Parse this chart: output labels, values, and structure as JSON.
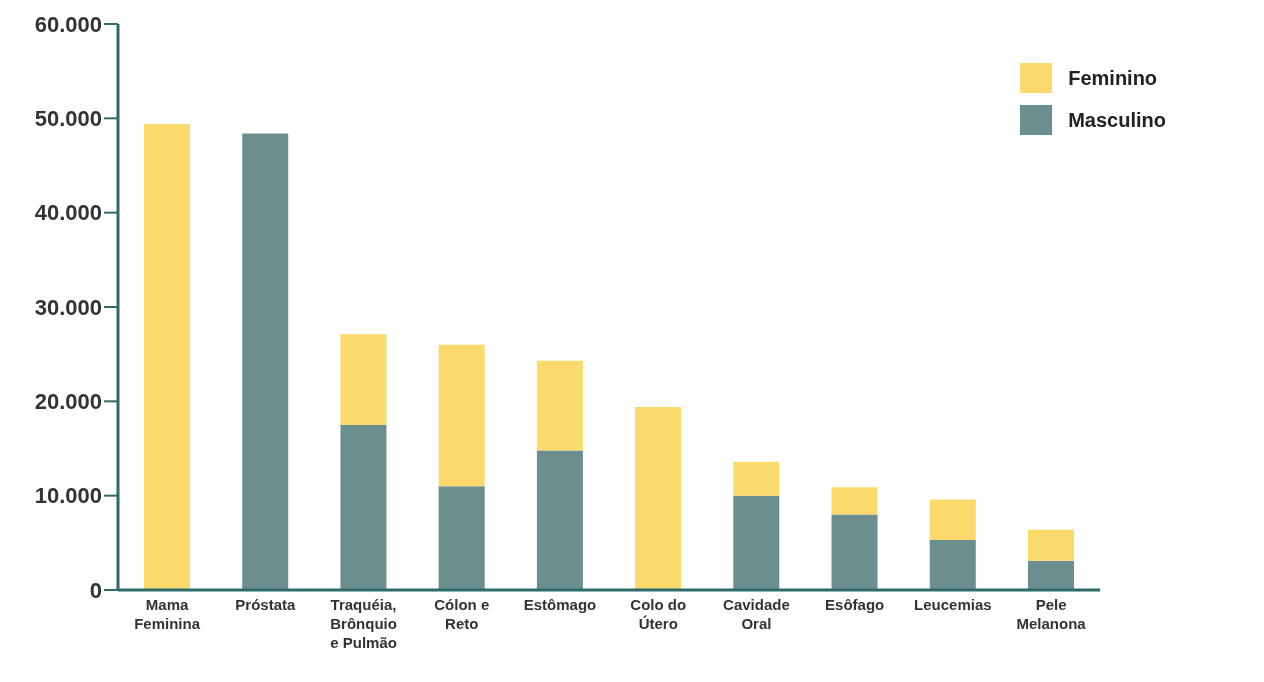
{
  "chart_data": {
    "type": "bar",
    "stacked": true,
    "categories": [
      "Mama Feminina",
      "Próstata",
      "Traquéia, Brônquio e Pulmão",
      "Cólon e Reto",
      "Estômago",
      "Colo do Útero",
      "Cavidade Oral",
      "Esôfago",
      "Leucemias",
      "Pele Melanona"
    ],
    "series": [
      {
        "name": "Masculino",
        "color": "#6b8e8e",
        "values": [
          0,
          48400,
          17500,
          11000,
          14800,
          0,
          10000,
          8000,
          5300,
          3100
        ]
      },
      {
        "name": "Feminino",
        "color": "#fcd96b",
        "values": [
          49400,
          0,
          9600,
          15000,
          9500,
          19400,
          3600,
          2900,
          4300,
          3300
        ]
      }
    ],
    "ylim": [
      0,
      60000
    ],
    "yticks": [
      {
        "value": 0,
        "label": "0"
      },
      {
        "value": 10000,
        "label": "10.000"
      },
      {
        "value": 20000,
        "label": "20.000"
      },
      {
        "value": 30000,
        "label": "30.000"
      },
      {
        "value": 40000,
        "label": "40.000"
      },
      {
        "value": 50000,
        "label": "50.000"
      },
      {
        "value": 60000,
        "label": "60.000"
      }
    ],
    "grid": false,
    "legend": "top right"
  }
}
